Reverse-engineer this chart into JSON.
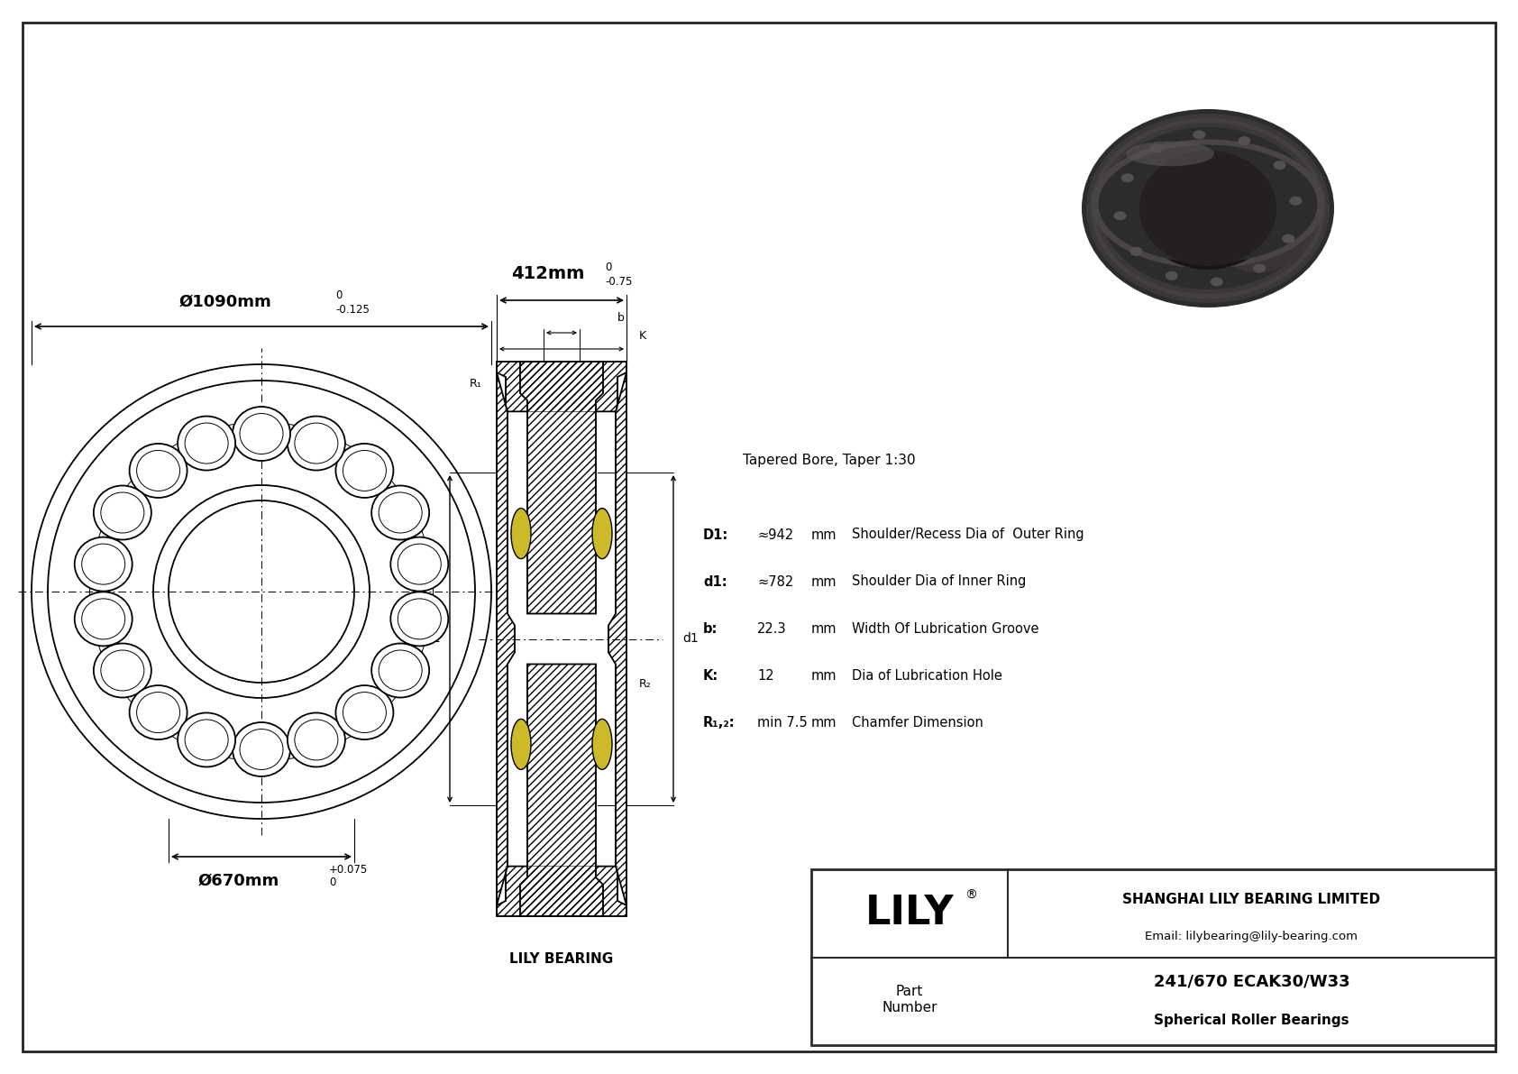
{
  "bg_color": "#ffffff",
  "outer_diameter_label": "Ø1090mm",
  "outer_tolerance_upper": "0",
  "outer_tolerance_lower": "-0.125",
  "inner_diameter_label": "Ø670mm",
  "inner_tolerance_upper": "+0.075",
  "inner_tolerance_lower": "0",
  "width_label": "412mm",
  "width_tolerance_upper": "0",
  "width_tolerance_lower": "-0.75",
  "specs": [
    {
      "label": "D1:",
      "value": "≈942",
      "unit": "mm",
      "desc": "Shoulder/Recess Dia of  Outer Ring"
    },
    {
      "label": "d1:",
      "value": "≈782",
      "unit": "mm",
      "desc": "Shoulder Dia of Inner Ring"
    },
    {
      "label": "b:",
      "value": "22.3",
      "unit": "mm",
      "desc": "Width Of Lubrication Groove"
    },
    {
      "label": "K:",
      "value": "12",
      "unit": "mm",
      "desc": "Dia of Lubrication Hole"
    },
    {
      "label": "R₁,₂:",
      "value": "min 7.5",
      "unit": "mm",
      "desc": "Chamfer Dimension"
    }
  ],
  "taper_note": "Tapered Bore, Taper 1:30",
  "company": "SHANGHAI LILY BEARING LIMITED",
  "email": "Email: lilybearing@lily-bearing.com",
  "part_number": "241/670 ECAK30/W33",
  "bearing_type": "Spherical Roller Bearings",
  "cross_section_label": "LILY BEARING",
  "part_label": "Part\nNumber",
  "lily_text": "LILY",
  "registered": "®"
}
